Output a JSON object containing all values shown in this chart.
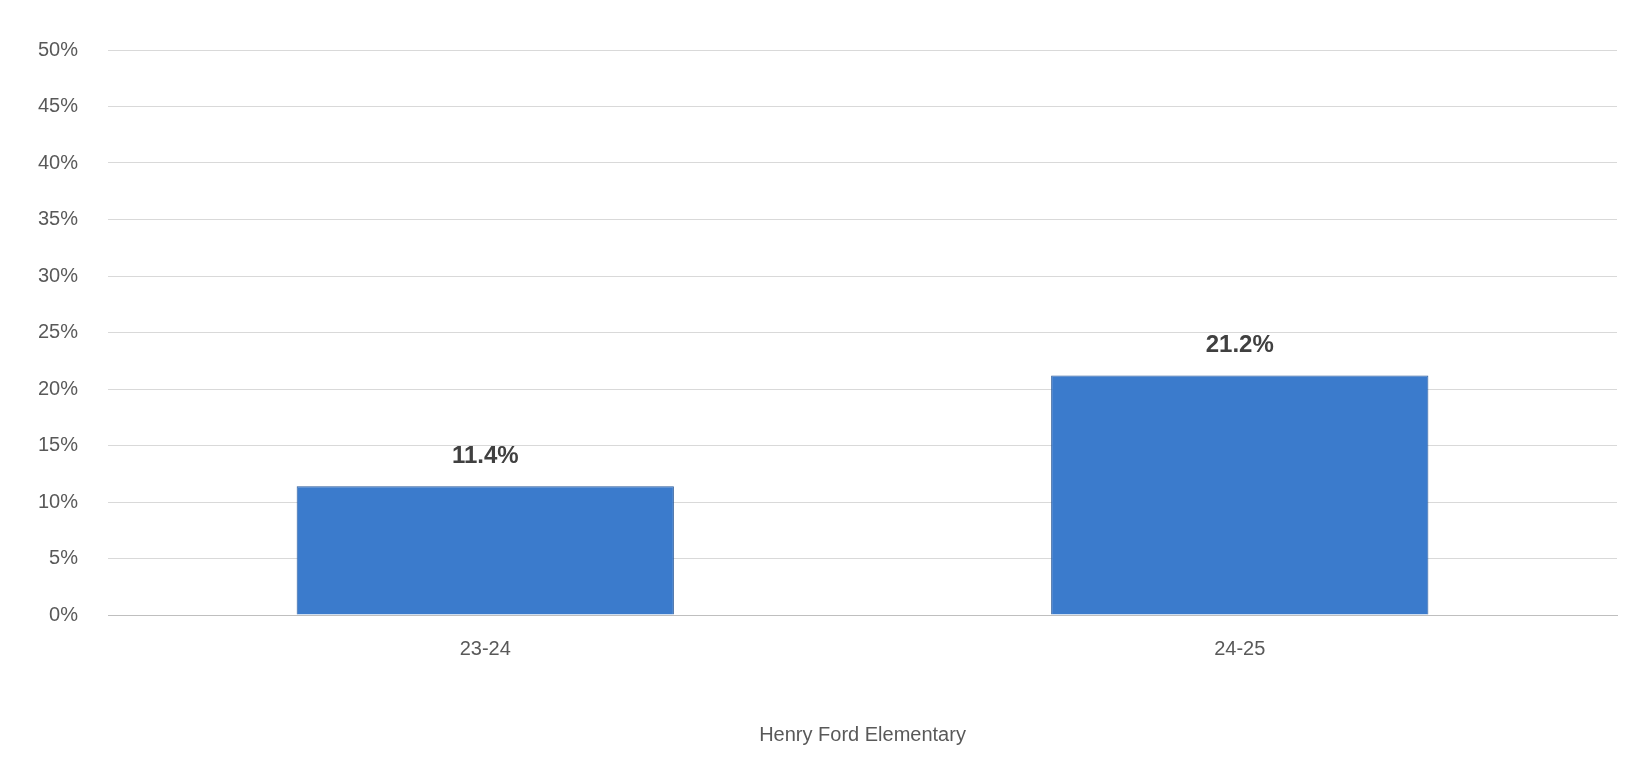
{
  "chart_data": {
    "type": "bar",
    "xlabel": "Henry Ford Elementary",
    "categories": [
      "23-24",
      "24-25"
    ],
    "values": [
      11.4,
      21.2
    ],
    "color": "#3b7bcc",
    "value_labels": [
      "11.4%",
      "21.2%"
    ],
    "ylim": [
      0,
      50
    ],
    "yticks": [
      {
        "value": 0,
        "label": "0%"
      },
      {
        "value": 5,
        "label": "5%"
      },
      {
        "value": 10,
        "label": "10%"
      },
      {
        "value": 15,
        "label": "15%"
      },
      {
        "value": 20,
        "label": "20%"
      },
      {
        "value": 25,
        "label": "25%"
      },
      {
        "value": 30,
        "label": "30%"
      },
      {
        "value": 35,
        "label": "35%"
      },
      {
        "value": 40,
        "label": "40%"
      },
      {
        "value": 45,
        "label": "45%"
      },
      {
        "value": 50,
        "label": "50%"
      }
    ],
    "grid": "y",
    "legend": false
  }
}
